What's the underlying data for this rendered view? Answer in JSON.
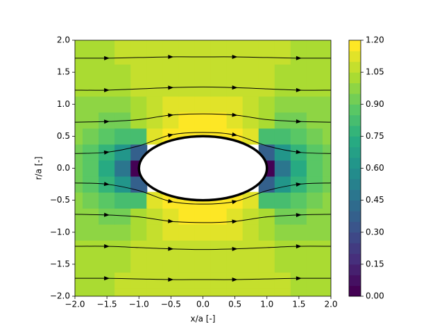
{
  "chart_data": {
    "type": "contour",
    "xlabel": "x/a [-]",
    "ylabel": "r/a [-]",
    "xlim": [
      -2,
      2
    ],
    "ylim": [
      -2,
      2
    ],
    "xticks": [
      {
        "value": -2,
        "label": "−2.0"
      },
      {
        "value": -1.5,
        "label": "−1.5"
      },
      {
        "value": -1,
        "label": "−1.0"
      },
      {
        "value": -0.5,
        "label": "−0.5"
      },
      {
        "value": 0,
        "label": "0.0"
      },
      {
        "value": 0.5,
        "label": "0.5"
      },
      {
        "value": 1,
        "label": "1.0"
      },
      {
        "value": 1.5,
        "label": "1.5"
      },
      {
        "value": 2,
        "label": "2.0"
      }
    ],
    "yticks": [
      {
        "value": -2,
        "label": "−2.0"
      },
      {
        "value": -1.5,
        "label": "−1.5"
      },
      {
        "value": -1,
        "label": "−1.0"
      },
      {
        "value": -0.5,
        "label": "−0.5"
      },
      {
        "value": 0,
        "label": "0.0"
      },
      {
        "value": 0.5,
        "label": "0.5"
      },
      {
        "value": 1,
        "label": "1.0"
      },
      {
        "value": 1.5,
        "label": "1.5"
      },
      {
        "value": 2,
        "label": "2.0"
      }
    ],
    "colormap": "viridis",
    "levels": [
      0,
      0.05,
      0.1,
      0.15,
      0.2,
      0.25,
      0.3,
      0.35,
      0.4,
      0.45,
      0.5,
      0.55,
      0.6,
      0.65,
      0.7,
      0.75,
      0.8,
      0.85,
      0.9,
      0.95,
      1.0,
      1.05,
      1.1,
      1.15,
      1.2
    ],
    "colorbar_ticks": [
      {
        "value": 0,
        "label": "0.00"
      },
      {
        "value": 0.15,
        "label": "0.15"
      },
      {
        "value": 0.3,
        "label": "0.30"
      },
      {
        "value": 0.45,
        "label": "0.45"
      },
      {
        "value": 0.6,
        "label": "0.60"
      },
      {
        "value": 0.75,
        "label": "0.75"
      },
      {
        "value": 0.9,
        "label": "0.90"
      },
      {
        "value": 1.05,
        "label": "1.05"
      },
      {
        "value": 1.2,
        "label": "1.20"
      }
    ],
    "field": {
      "x": [
        -2,
        -1.75,
        -1.5,
        -1.25,
        -1,
        -0.75,
        -0.5,
        -0.25,
        0,
        0.25,
        0.5,
        0.75,
        1,
        1.25,
        1.5,
        1.75,
        2
      ],
      "y": [
        -2,
        -1.75,
        -1.5,
        -1.25,
        -1,
        -0.75,
        -0.5,
        -0.25,
        0,
        0.25,
        0.5,
        0.75,
        1,
        1.25,
        1.5,
        1.75,
        2
      ],
      "z": [
        [
          1.02,
          1.03,
          1.04,
          1.05,
          1.05,
          1.06,
          1.06,
          1.06,
          1.06,
          1.06,
          1.06,
          1.06,
          1.05,
          1.05,
          1.04,
          1.03,
          1.02
        ],
        [
          1.02,
          1.02,
          1.04,
          1.05,
          1.05,
          1.06,
          1.06,
          1.06,
          1.06,
          1.06,
          1.06,
          1.06,
          1.05,
          1.05,
          1.04,
          1.02,
          1.02
        ],
        [
          1.01,
          1.01,
          1.02,
          1.04,
          1.05,
          1.06,
          1.07,
          1.07,
          1.07,
          1.07,
          1.07,
          1.06,
          1.05,
          1.04,
          1.02,
          1.01,
          1.01
        ],
        [
          1.0,
          1.0,
          1.0,
          1.02,
          1.05,
          1.06,
          1.08,
          1.08,
          1.08,
          1.08,
          1.08,
          1.06,
          1.05,
          1.02,
          1.0,
          1.0,
          1.0
        ],
        [
          0.99,
          0.98,
          0.98,
          0.99,
          1.03,
          1.07,
          1.1,
          1.11,
          1.11,
          1.11,
          1.1,
          1.07,
          1.03,
          0.99,
          0.98,
          0.98,
          0.99
        ],
        [
          0.97,
          0.95,
          0.93,
          0.93,
          1.0,
          1.08,
          1.13,
          1.15,
          1.16,
          1.15,
          1.13,
          1.08,
          1.0,
          0.93,
          0.93,
          0.95,
          0.97
        ],
        [
          0.95,
          0.91,
          0.86,
          0.8,
          0.8,
          1.1,
          1.17,
          1.19,
          1.2,
          1.19,
          1.17,
          1.1,
          0.8,
          0.8,
          0.86,
          0.91,
          0.95
        ],
        [
          0.93,
          0.88,
          0.78,
          0.6,
          0.35,
          null,
          null,
          null,
          null,
          null,
          null,
          null,
          0.35,
          0.6,
          0.78,
          0.88,
          0.93
        ],
        [
          0.92,
          0.85,
          0.72,
          0.45,
          0,
          null,
          null,
          null,
          null,
          null,
          null,
          null,
          0,
          0.45,
          0.72,
          0.85,
          0.92
        ],
        [
          0.93,
          0.88,
          0.78,
          0.6,
          0.35,
          null,
          null,
          null,
          null,
          null,
          null,
          null,
          0.35,
          0.6,
          0.78,
          0.88,
          0.93
        ],
        [
          0.95,
          0.91,
          0.86,
          0.8,
          0.8,
          1.1,
          1.17,
          1.19,
          1.2,
          1.19,
          1.17,
          1.1,
          0.8,
          0.8,
          0.86,
          0.91,
          0.95
        ],
        [
          0.97,
          0.95,
          0.93,
          0.93,
          1.0,
          1.08,
          1.13,
          1.15,
          1.16,
          1.15,
          1.13,
          1.08,
          1.0,
          0.93,
          0.93,
          0.95,
          0.97
        ],
        [
          0.99,
          0.98,
          0.98,
          0.99,
          1.03,
          1.07,
          1.1,
          1.11,
          1.11,
          1.11,
          1.1,
          1.07,
          1.03,
          0.99,
          0.98,
          0.98,
          0.99
        ],
        [
          1.0,
          1.0,
          1.0,
          1.02,
          1.05,
          1.06,
          1.08,
          1.08,
          1.08,
          1.08,
          1.08,
          1.06,
          1.05,
          1.02,
          1.0,
          1.0,
          1.0
        ],
        [
          1.01,
          1.01,
          1.02,
          1.04,
          1.05,
          1.06,
          1.07,
          1.07,
          1.07,
          1.07,
          1.07,
          1.06,
          1.05,
          1.04,
          1.02,
          1.01,
          1.01
        ],
        [
          1.02,
          1.02,
          1.04,
          1.05,
          1.05,
          1.06,
          1.06,
          1.06,
          1.06,
          1.06,
          1.06,
          1.06,
          1.05,
          1.05,
          1.04,
          1.02,
          1.02
        ],
        [
          1.02,
          1.03,
          1.04,
          1.05,
          1.05,
          1.06,
          1.06,
          1.06,
          1.06,
          1.06,
          1.06,
          1.06,
          1.05,
          1.05,
          1.04,
          1.03,
          1.02
        ]
      ]
    },
    "streamlines": {
      "color": "#000000",
      "x": [
        -2,
        -1.5,
        -1,
        -0.5,
        0,
        0.5,
        1,
        1.5,
        2
      ],
      "series": [
        {
          "values": [
            1.72,
            1.72,
            1.73,
            1.74,
            1.74,
            1.74,
            1.73,
            1.72,
            1.72
          ]
        },
        {
          "values": [
            1.22,
            1.22,
            1.24,
            1.26,
            1.27,
            1.26,
            1.24,
            1.22,
            1.22
          ]
        },
        {
          "values": [
            0.72,
            0.73,
            0.76,
            0.83,
            0.85,
            0.83,
            0.76,
            0.73,
            0.72
          ]
        },
        {
          "values": [
            0.23,
            0.25,
            0.35,
            0.52,
            0.56,
            0.52,
            0.35,
            0.25,
            0.23
          ]
        },
        {
          "values": [
            -0.23,
            -0.25,
            -0.35,
            -0.52,
            -0.56,
            -0.52,
            -0.35,
            -0.25,
            -0.23
          ]
        },
        {
          "values": [
            -0.72,
            -0.73,
            -0.76,
            -0.83,
            -0.85,
            -0.83,
            -0.76,
            -0.73,
            -0.72
          ]
        },
        {
          "values": [
            -1.22,
            -1.22,
            -1.24,
            -1.26,
            -1.27,
            -1.26,
            -1.24,
            -1.22,
            -1.22
          ]
        },
        {
          "values": [
            -1.72,
            -1.72,
            -1.73,
            -1.74,
            -1.74,
            -1.74,
            -1.73,
            -1.72,
            -1.72
          ]
        }
      ]
    }
  }
}
